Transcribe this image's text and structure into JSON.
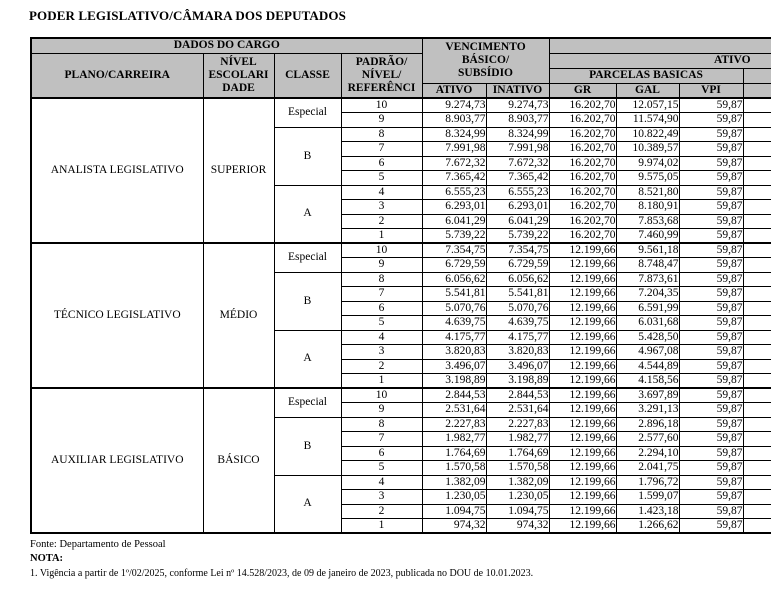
{
  "title": "PODER LEGISLATIVO/CÂMARA DOS DEPUTADOS",
  "colors": {
    "header_bg": "#c0c0c0",
    "border": "#000000",
    "text": "#000000",
    "page_bg": "#ffffff"
  },
  "table": {
    "header": {
      "dados_do_cargo": "DADOS DO CARGO",
      "vencimento_basico_subsidio": "VENCIMENTO\nBÁSICO/\nSUBSÍDIO",
      "plano_carreira": "PLANO/CARREIRA",
      "nivel_escolaridade": "NÍVEL\nESCOLARI\nDADE",
      "classe": "CLASSE",
      "padrao_nivel_referencia": "PADRÃO/\nNÍVEL/\nREFERÊNCI",
      "ativo_group": "ATIVO",
      "parcelas_basicas": "PARCELAS BASICAS",
      "col_ativo": "ATIVO",
      "col_inativo": "INATIVO",
      "col_gr": "GR",
      "col_gal": "GAL",
      "col_vpi": "VPI"
    },
    "sections": [
      {
        "career": "ANALISTA LEGISLATIVO",
        "level": "SUPERIOR",
        "classes": [
          {
            "name": "Especial",
            "rows": [
              [
                "10",
                "9.274,73",
                "9.274,73",
                "16.202,70",
                "12.057,15",
                "59,87"
              ],
              [
                "9",
                "8.903,77",
                "8.903,77",
                "16.202,70",
                "11.574,90",
                "59,87"
              ]
            ]
          },
          {
            "name": "B",
            "rows": [
              [
                "8",
                "8.324,99",
                "8.324,99",
                "16.202,70",
                "10.822,49",
                "59,87"
              ],
              [
                "7",
                "7.991,98",
                "7.991,98",
                "16.202,70",
                "10.389,57",
                "59,87"
              ],
              [
                "6",
                "7.672,32",
                "7.672,32",
                "16.202,70",
                "9.974,02",
                "59,87"
              ],
              [
                "5",
                "7.365,42",
                "7.365,42",
                "16.202,70",
                "9.575,05",
                "59,87"
              ]
            ]
          },
          {
            "name": "A",
            "rows": [
              [
                "4",
                "6.555,23",
                "6.555,23",
                "16.202,70",
                "8.521,80",
                "59,87"
              ],
              [
                "3",
                "6.293,01",
                "6.293,01",
                "16.202,70",
                "8.180,91",
                "59,87"
              ],
              [
                "2",
                "6.041,29",
                "6.041,29",
                "16.202,70",
                "7.853,68",
                "59,87"
              ],
              [
                "1",
                "5.739,22",
                "5.739,22",
                "16.202,70",
                "7.460,99",
                "59,87"
              ]
            ]
          }
        ]
      },
      {
        "career": "TÉCNICO LEGISLATIVO",
        "level": "MÉDIO",
        "classes": [
          {
            "name": "Especial",
            "rows": [
              [
                "10",
                "7.354,75",
                "7.354,75",
                "12.199,66",
                "9.561,18",
                "59,87"
              ],
              [
                "9",
                "6.729,59",
                "6.729,59",
                "12.199,66",
                "8.748,47",
                "59,87"
              ]
            ]
          },
          {
            "name": "B",
            "rows": [
              [
                "8",
                "6.056,62",
                "6.056,62",
                "12.199,66",
                "7.873,61",
                "59,87"
              ],
              [
                "7",
                "5.541,81",
                "5.541,81",
                "12.199,66",
                "7.204,35",
                "59,87"
              ],
              [
                "6",
                "5.070,76",
                "5.070,76",
                "12.199,66",
                "6.591,99",
                "59,87"
              ],
              [
                "5",
                "4.639,75",
                "4.639,75",
                "12.199,66",
                "6.031,68",
                "59,87"
              ]
            ]
          },
          {
            "name": "A",
            "rows": [
              [
                "4",
                "4.175,77",
                "4.175,77",
                "12.199,66",
                "5.428,50",
                "59,87"
              ],
              [
                "3",
                "3.820,83",
                "3.820,83",
                "12.199,66",
                "4.967,08",
                "59,87"
              ],
              [
                "2",
                "3.496,07",
                "3.496,07",
                "12.199,66",
                "4.544,89",
                "59,87"
              ],
              [
                "1",
                "3.198,89",
                "3.198,89",
                "12.199,66",
                "4.158,56",
                "59,87"
              ]
            ]
          }
        ]
      },
      {
        "career": "AUXILIAR LEGISLATIVO",
        "level": "BÁSICO",
        "classes": [
          {
            "name": "Especial",
            "rows": [
              [
                "10",
                "2.844,53",
                "2.844,53",
                "12.199,66",
                "3.697,89",
                "59,87"
              ],
              [
                "9",
                "2.531,64",
                "2.531,64",
                "12.199,66",
                "3.291,13",
                "59,87"
              ]
            ]
          },
          {
            "name": "B",
            "rows": [
              [
                "8",
                "2.227,83",
                "2.227,83",
                "12.199,66",
                "2.896,18",
                "59,87"
              ],
              [
                "7",
                "1.982,77",
                "1.982,77",
                "12.199,66",
                "2.577,60",
                "59,87"
              ],
              [
                "6",
                "1.764,69",
                "1.764,69",
                "12.199,66",
                "2.294,10",
                "59,87"
              ],
              [
                "5",
                "1.570,58",
                "1.570,58",
                "12.199,66",
                "2.041,75",
                "59,87"
              ]
            ]
          },
          {
            "name": "A",
            "rows": [
              [
                "4",
                "1.382,09",
                "1.382,09",
                "12.199,66",
                "1.796,72",
                "59,87"
              ],
              [
                "3",
                "1.230,05",
                "1.230,05",
                "12.199,66",
                "1.599,07",
                "59,87"
              ],
              [
                "2",
                "1.094,75",
                "1.094,75",
                "12.199,66",
                "1.423,18",
                "59,87"
              ],
              [
                "1",
                "974,32",
                "974,32",
                "12.199,66",
                "1.266,62",
                "59,87"
              ]
            ]
          }
        ]
      }
    ]
  },
  "footer": {
    "fonte": "Fonte: Departamento de Pessoal",
    "nota_label": "NOTA:",
    "nota_1": "1. Vigência a partir de 1º/02/2025, conforme Lei nº 14.528/2023, de 09 de janeiro de 2023, publicada no DOU de 10.01.2023."
  }
}
